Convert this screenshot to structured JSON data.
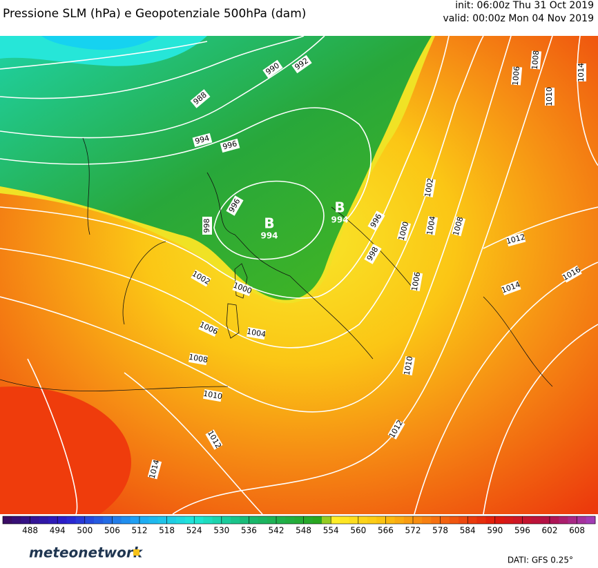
{
  "header": {
    "title": "Pressione SLM (hPa) e Geopotenziale 500hPa (dam)",
    "init": "init: 06:00z Thu 31 Oct 2019",
    "valid": "valid: 00:00z Mon 04 Nov 2019"
  },
  "lows": [
    {
      "label": "B",
      "value": 994
    },
    {
      "label": "B",
      "value": 994
    }
  ],
  "isobar_labels": [
    990,
    992,
    988,
    994,
    996,
    996,
    998,
    1002,
    1000,
    1006,
    1004,
    1008,
    1010,
    1012,
    1014,
    996,
    1000,
    998,
    1002,
    1004,
    1008,
    1006,
    1010,
    1012,
    1012,
    1014,
    1016,
    1006,
    1008,
    1010,
    1014
  ],
  "colorbar": {
    "lim": [
      482,
      612
    ],
    "step": 2,
    "ticks": [
      488,
      494,
      500,
      506,
      512,
      518,
      524,
      530,
      536,
      542,
      548,
      554,
      560,
      566,
      572,
      578,
      584,
      590,
      596,
      602,
      608
    ],
    "stops": [
      {
        "value": 482,
        "color": "#3b0a5c"
      },
      {
        "value": 496,
        "color": "#2a1fd0"
      },
      {
        "value": 512,
        "color": "#1ea8f5"
      },
      {
        "value": 524,
        "color": "#20e8d8"
      },
      {
        "value": 536,
        "color": "#18b870"
      },
      {
        "value": 552,
        "color": "#2aa51a"
      },
      {
        "value": 554,
        "color": "#fff22a"
      },
      {
        "value": 566,
        "color": "#fbc010"
      },
      {
        "value": 578,
        "color": "#f56a12"
      },
      {
        "value": 590,
        "color": "#e11a0a"
      },
      {
        "value": 602,
        "color": "#b0104a"
      },
      {
        "value": 612,
        "color": "#a040c0"
      }
    ]
  },
  "footer": {
    "logo": "meteonetwork",
    "source": "DATI: GFS 0.25°"
  }
}
